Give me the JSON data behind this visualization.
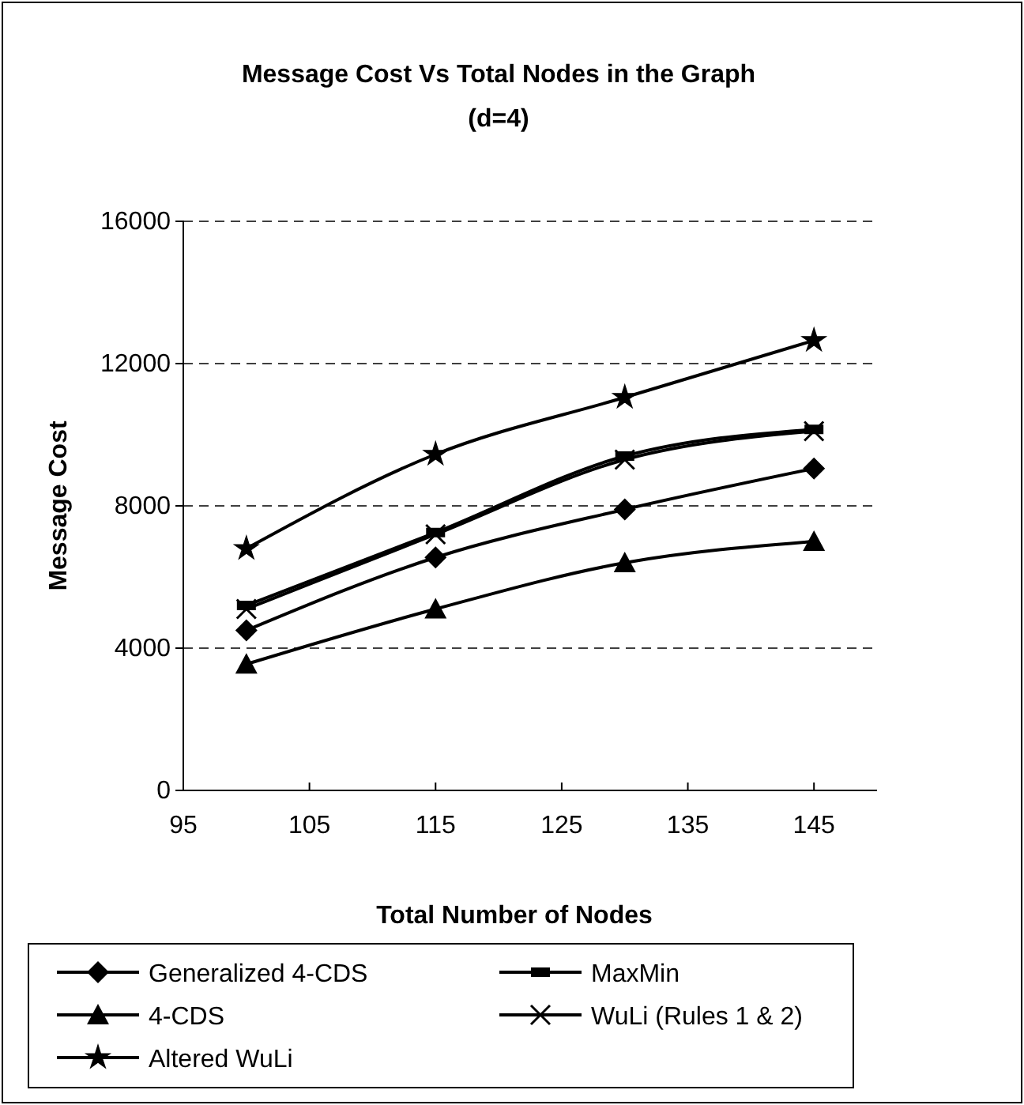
{
  "chart_data": {
    "type": "line",
    "title": "Message Cost Vs Total Nodes in the Graph",
    "subtitle": "(d=4)",
    "xlabel": "Total Number of Nodes",
    "ylabel": "Message Cost",
    "x": [
      100,
      115,
      130,
      145
    ],
    "series": [
      {
        "name": "Generalized 4-CDS",
        "color": "#000000",
        "marker": "diamond",
        "values": [
          4500,
          6550,
          7900,
          9050
        ]
      },
      {
        "name": "MaxMin",
        "color": "#000000",
        "marker": "square",
        "values": [
          5200,
          7250,
          9400,
          10150
        ]
      },
      {
        "name": "4-CDS",
        "color": "#000000",
        "marker": "triangle",
        "values": [
          3550,
          5100,
          6400,
          7000
        ]
      },
      {
        "name": "WuLi (Rules 1 & 2)",
        "color": "#000000",
        "marker": "cross",
        "values": [
          5100,
          7200,
          9300,
          10100
        ]
      },
      {
        "name": "Altered WuLi",
        "color": "#000000",
        "marker": "star",
        "values": [
          6800,
          9450,
          11050,
          12650
        ]
      }
    ],
    "xlim": [
      95,
      150
    ],
    "xticks": [
      95,
      105,
      115,
      125,
      135,
      145
    ],
    "ylim": [
      0,
      16000
    ],
    "yticks": [
      0,
      4000,
      8000,
      12000,
      16000
    ],
    "grid": "y",
    "legend": "bottom",
    "line_style": "solid"
  }
}
